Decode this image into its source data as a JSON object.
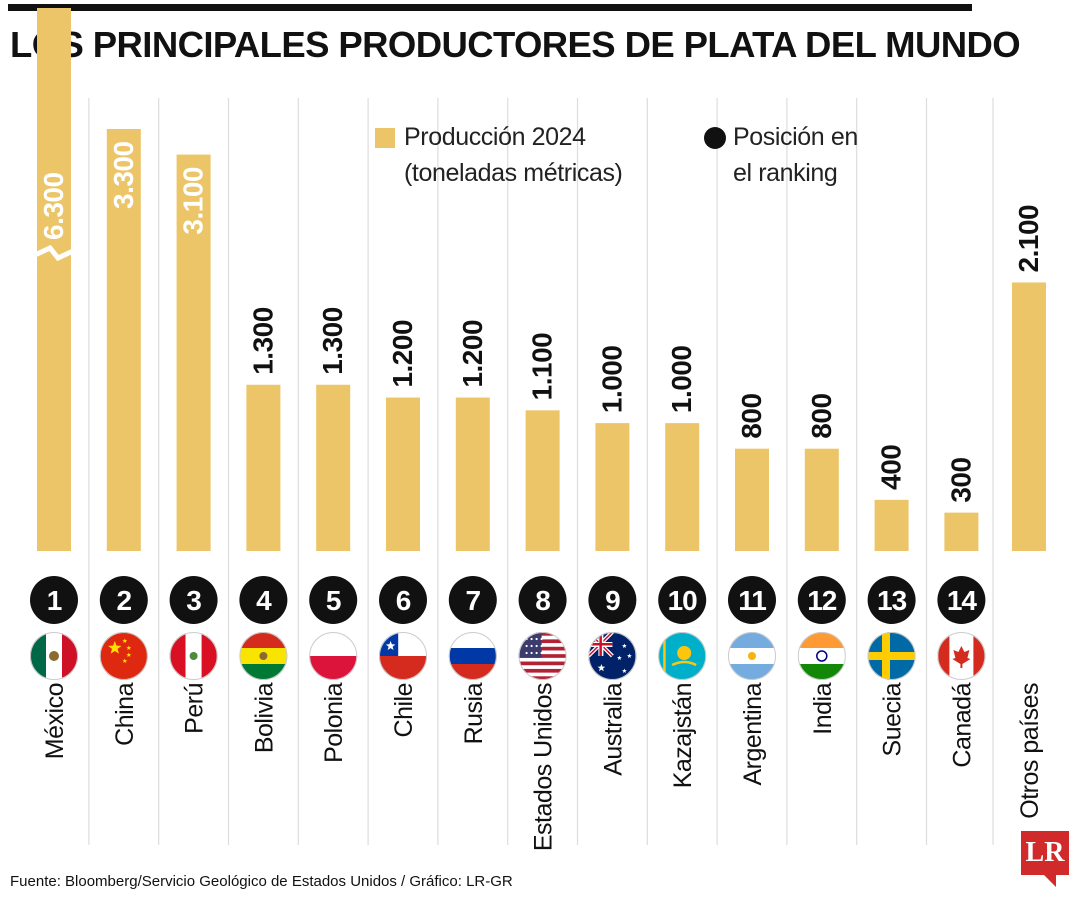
{
  "header": {
    "title": "LOS PRINCIPALES PRODUCTORES DE PLATA DEL MUNDO"
  },
  "legend": {
    "production_line1": "Producción 2024",
    "production_line2": "(toneladas métricas)",
    "ranking_line1": "Posición en",
    "ranking_line2": "el ranking"
  },
  "footer": {
    "source": "Fuente: Bloomberg/Servicio Geológico de Estados Unidos / Gráfico: LR-GR",
    "logo": "LR"
  },
  "colors": {
    "bar": "#ebc567",
    "text": "#111111",
    "rank_circle": "#111111",
    "divider": "#dddddd",
    "logo": "#d12a2a"
  },
  "chart_data": {
    "type": "bar",
    "title": "LOS PRINCIPALES PRODUCTORES DE PLATA DEL MUNDO",
    "series_name": "Producción 2024 (toneladas métricas)",
    "categories": [
      "México",
      "China",
      "Perú",
      "Bolivia",
      "Polonia",
      "Chile",
      "Rusia",
      "Estados Unidos",
      "Australia",
      "Kazajstán",
      "Argentina",
      "India",
      "Suecia",
      "Canadá",
      "Otros países"
    ],
    "values": [
      6300,
      3300,
      3100,
      1300,
      1300,
      1200,
      1200,
      1100,
      1000,
      1000,
      800,
      800,
      400,
      300,
      2100
    ],
    "value_labels": [
      "6.300",
      "3.300",
      "3.100",
      "1.300",
      "1.300",
      "1.200",
      "1.200",
      "1.100",
      "1.000",
      "1.000",
      "800",
      "800",
      "400",
      "300",
      "2.100"
    ],
    "ranks": [
      "1",
      "2",
      "3",
      "4",
      "5",
      "6",
      "7",
      "8",
      "9",
      "10",
      "11",
      "12",
      "13",
      "14",
      ""
    ],
    "flags": [
      "mexico-flag",
      "china-flag",
      "peru-flag",
      "bolivia-flag",
      "poland-flag",
      "chile-flag",
      "russia-flag",
      "usa-flag",
      "australia-flag",
      "kazakhstan-flag",
      "argentina-flag",
      "india-flag",
      "sweden-flag",
      "canada-flag",
      ""
    ],
    "broken_axis_category": "México",
    "ylim": [
      0,
      3300
    ],
    "grid": false,
    "legend_position": "top-center"
  }
}
